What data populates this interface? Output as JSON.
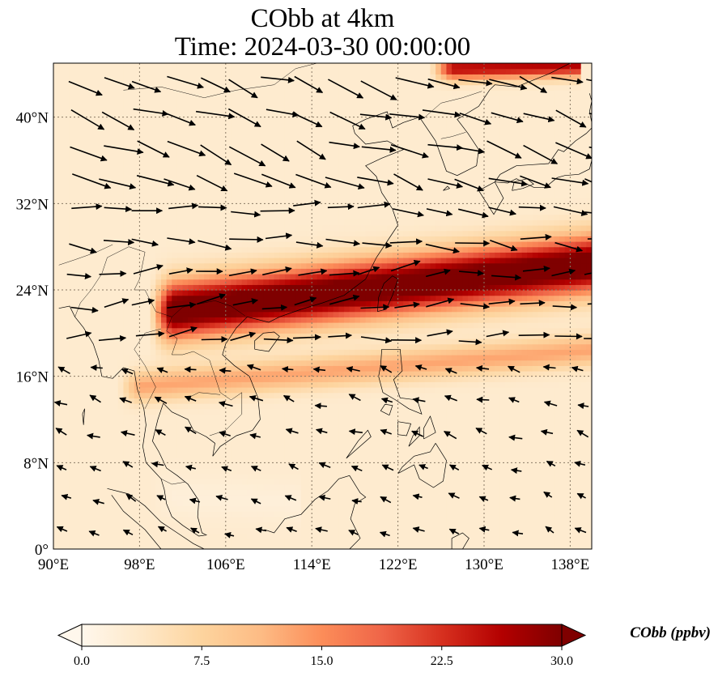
{
  "title": {
    "line1": "CObb at 4km",
    "line2": "Time: 2024-03-30 00:00:00"
  },
  "chart_data": {
    "type": "heatmap",
    "map": {
      "lon_range": [
        90,
        140
      ],
      "lat_range": [
        0,
        45
      ],
      "xticks": [
        {
          "value": 90,
          "label": "90°E"
        },
        {
          "value": 98,
          "label": "98°E"
        },
        {
          "value": 106,
          "label": "106°E"
        },
        {
          "value": 114,
          "label": "114°E"
        },
        {
          "value": 122,
          "label": "122°E"
        },
        {
          "value": 130,
          "label": "130°E"
        },
        {
          "value": 138,
          "label": "138°E"
        }
      ],
      "yticks": [
        {
          "value": 0,
          "label": "0°"
        },
        {
          "value": 8,
          "label": "8°N"
        },
        {
          "value": 16,
          "label": "16°N"
        },
        {
          "value": 24,
          "label": "24°N"
        },
        {
          "value": 32,
          "label": "32°N"
        },
        {
          "value": 40,
          "label": "40°N"
        }
      ],
      "grid": true,
      "coastlines": true
    },
    "field": {
      "name": "CObb",
      "units": "ppbv",
      "colormap": "OrRd",
      "vmin": 0,
      "vmax": 30,
      "background_value": 3,
      "plumes": [
        {
          "lon_start": 100,
          "lon_end": 140,
          "lat_center": 22,
          "lat_slope": 0.11,
          "width_deg": 2.6,
          "value": 34
        },
        {
          "lon_start": 97,
          "lon_end": 140,
          "lat_center": 15,
          "lat_slope": 0.08,
          "width_deg": 1.4,
          "value": 13
        },
        {
          "lon_start": 126,
          "lon_end": 138,
          "lat_center": 44.5,
          "lat_slope": 0.02,
          "width_deg": 1.0,
          "value": 26
        },
        {
          "lon_start": 100,
          "lon_end": 112,
          "lat_center": 5,
          "lat_slope": -0.05,
          "width_deg": 1.8,
          "value": 2
        }
      ]
    },
    "wind": {
      "grid_lon_step": 3,
      "grid_lat_step": 3,
      "regions": [
        {
          "lat_min": 33,
          "lat_max": 45,
          "lon_min": 90,
          "lon_max": 140,
          "u": 1.0,
          "v": -0.35,
          "speed": 1.0
        },
        {
          "lat_min": 26,
          "lat_max": 33,
          "lon_min": 90,
          "lon_max": 140,
          "u": 1.0,
          "v": -0.1,
          "speed": 0.85
        },
        {
          "lat_min": 18,
          "lat_max": 26,
          "lon_min": 90,
          "lon_max": 140,
          "u": 1.0,
          "v": 0.12,
          "speed": 0.75
        },
        {
          "lat_min": 8,
          "lat_max": 18,
          "lon_min": 90,
          "lon_max": 140,
          "u": -0.9,
          "v": 0.3,
          "speed": 0.35
        },
        {
          "lat_min": 0,
          "lat_max": 8,
          "lon_min": 90,
          "lon_max": 140,
          "u": -0.8,
          "v": 0.35,
          "speed": 0.3
        }
      ]
    },
    "colorbar": {
      "ticks": [
        {
          "value": 0.0,
          "label": "0.0"
        },
        {
          "value": 7.5,
          "label": "7.5"
        },
        {
          "value": 15.0,
          "label": "15.0"
        },
        {
          "value": 22.5,
          "label": "22.5"
        },
        {
          "value": 30.0,
          "label": "30.0"
        }
      ],
      "extend": "both",
      "label": "CObb (ppbv)"
    }
  }
}
